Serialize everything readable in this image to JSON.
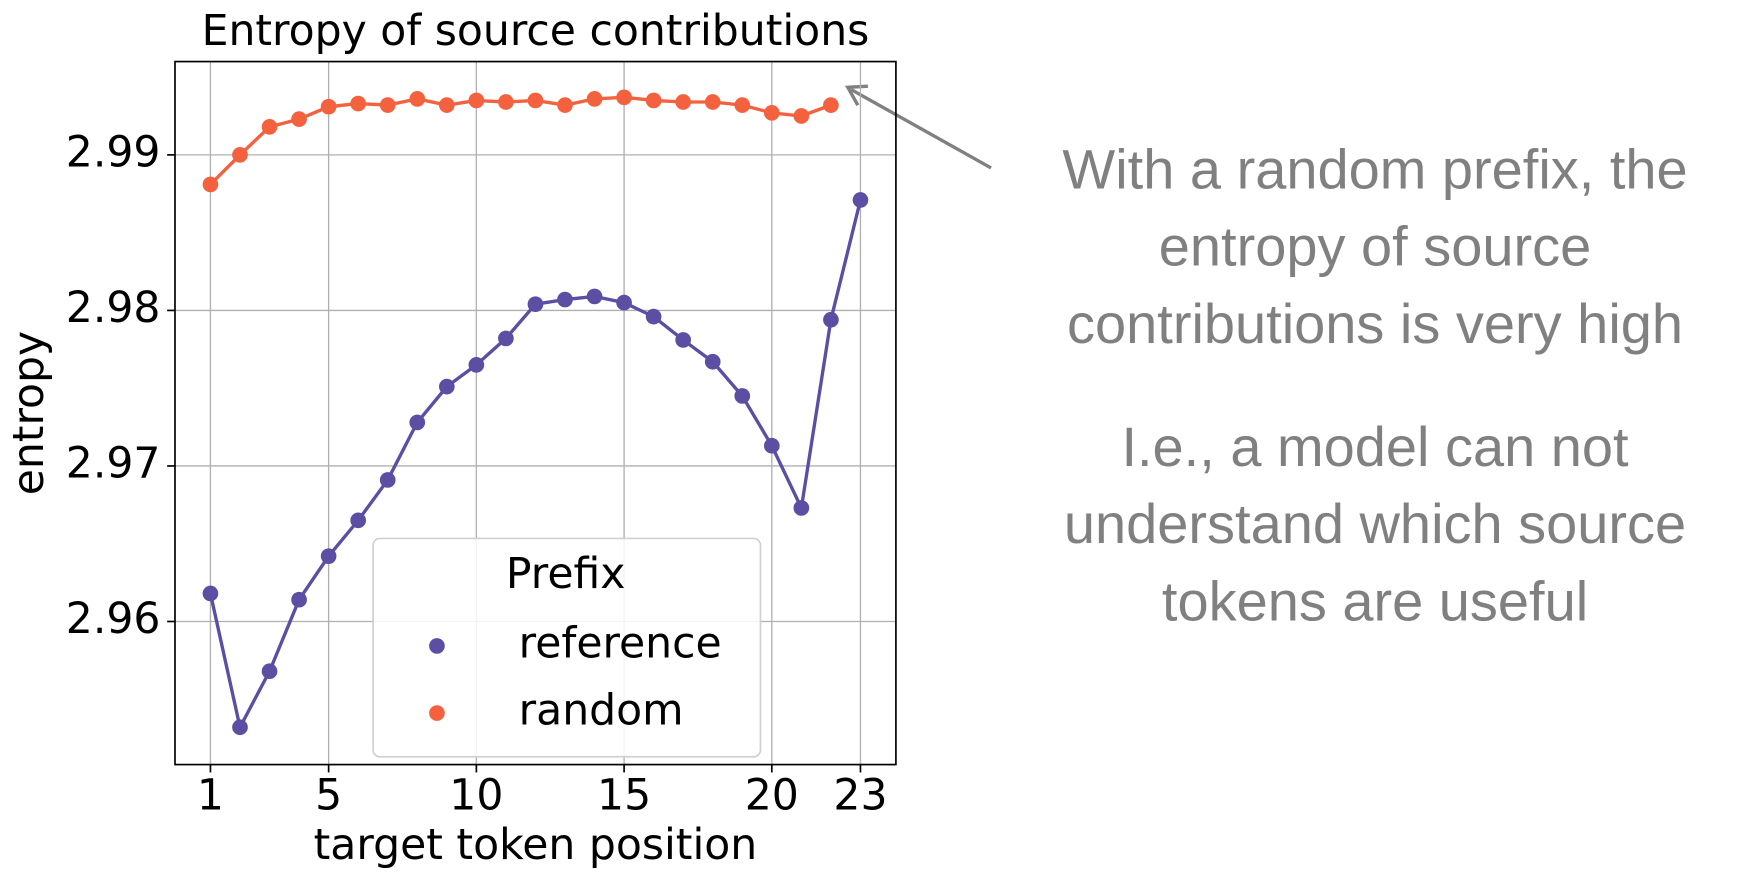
{
  "chart_data": {
    "type": "line",
    "title": "Entropy of source contributions",
    "xlabel": "target token position",
    "ylabel": "entropy",
    "xlim": [
      -0.2,
      24.2
    ],
    "xticks": [
      1,
      5,
      10,
      15,
      20,
      23
    ],
    "ylim": [
      2.9508,
      2.996
    ],
    "yticks": [
      2.96,
      2.97,
      2.98,
      2.99
    ],
    "grid": true,
    "legend": {
      "title": "Prefix",
      "position": "lower center"
    },
    "series": [
      {
        "name": "reference",
        "color": "#5c4ea3",
        "x": [
          1,
          2,
          3,
          4,
          5,
          6,
          7,
          8,
          9,
          10,
          11,
          12,
          13,
          14,
          15,
          16,
          17,
          18,
          19,
          20,
          21,
          22,
          23
        ],
        "values": [
          2.9618,
          2.9532,
          2.9568,
          2.9614,
          2.9642,
          2.9665,
          2.9691,
          2.9728,
          2.9751,
          2.9765,
          2.9782,
          2.9804,
          2.9807,
          2.9809,
          2.9805,
          2.9796,
          2.9781,
          2.9767,
          2.9745,
          2.9713,
          2.9673,
          2.9794,
          2.9871
        ]
      },
      {
        "name": "random",
        "color": "#f4613e",
        "x": [
          1,
          2,
          3,
          4,
          5,
          6,
          7,
          8,
          9,
          10,
          11,
          12,
          13,
          14,
          15,
          16,
          17,
          18,
          19,
          20,
          21,
          22
        ],
        "values": [
          2.9881,
          2.99,
          2.9918,
          2.9923,
          2.9931,
          2.9933,
          2.9932,
          2.9936,
          2.9932,
          2.9935,
          2.9934,
          2.9935,
          2.9932,
          2.9936,
          2.9937,
          2.9935,
          2.9934,
          2.9934,
          2.9932,
          2.9927,
          2.9925,
          2.9932
        ]
      }
    ],
    "annotations": [
      {
        "lines": [
          "With a random prefix, the",
          "entropy of source",
          "contributions is very high"
        ]
      },
      {
        "lines": [
          "I.e., a model can not",
          "understand which source",
          "tokens are useful"
        ]
      }
    ]
  }
}
